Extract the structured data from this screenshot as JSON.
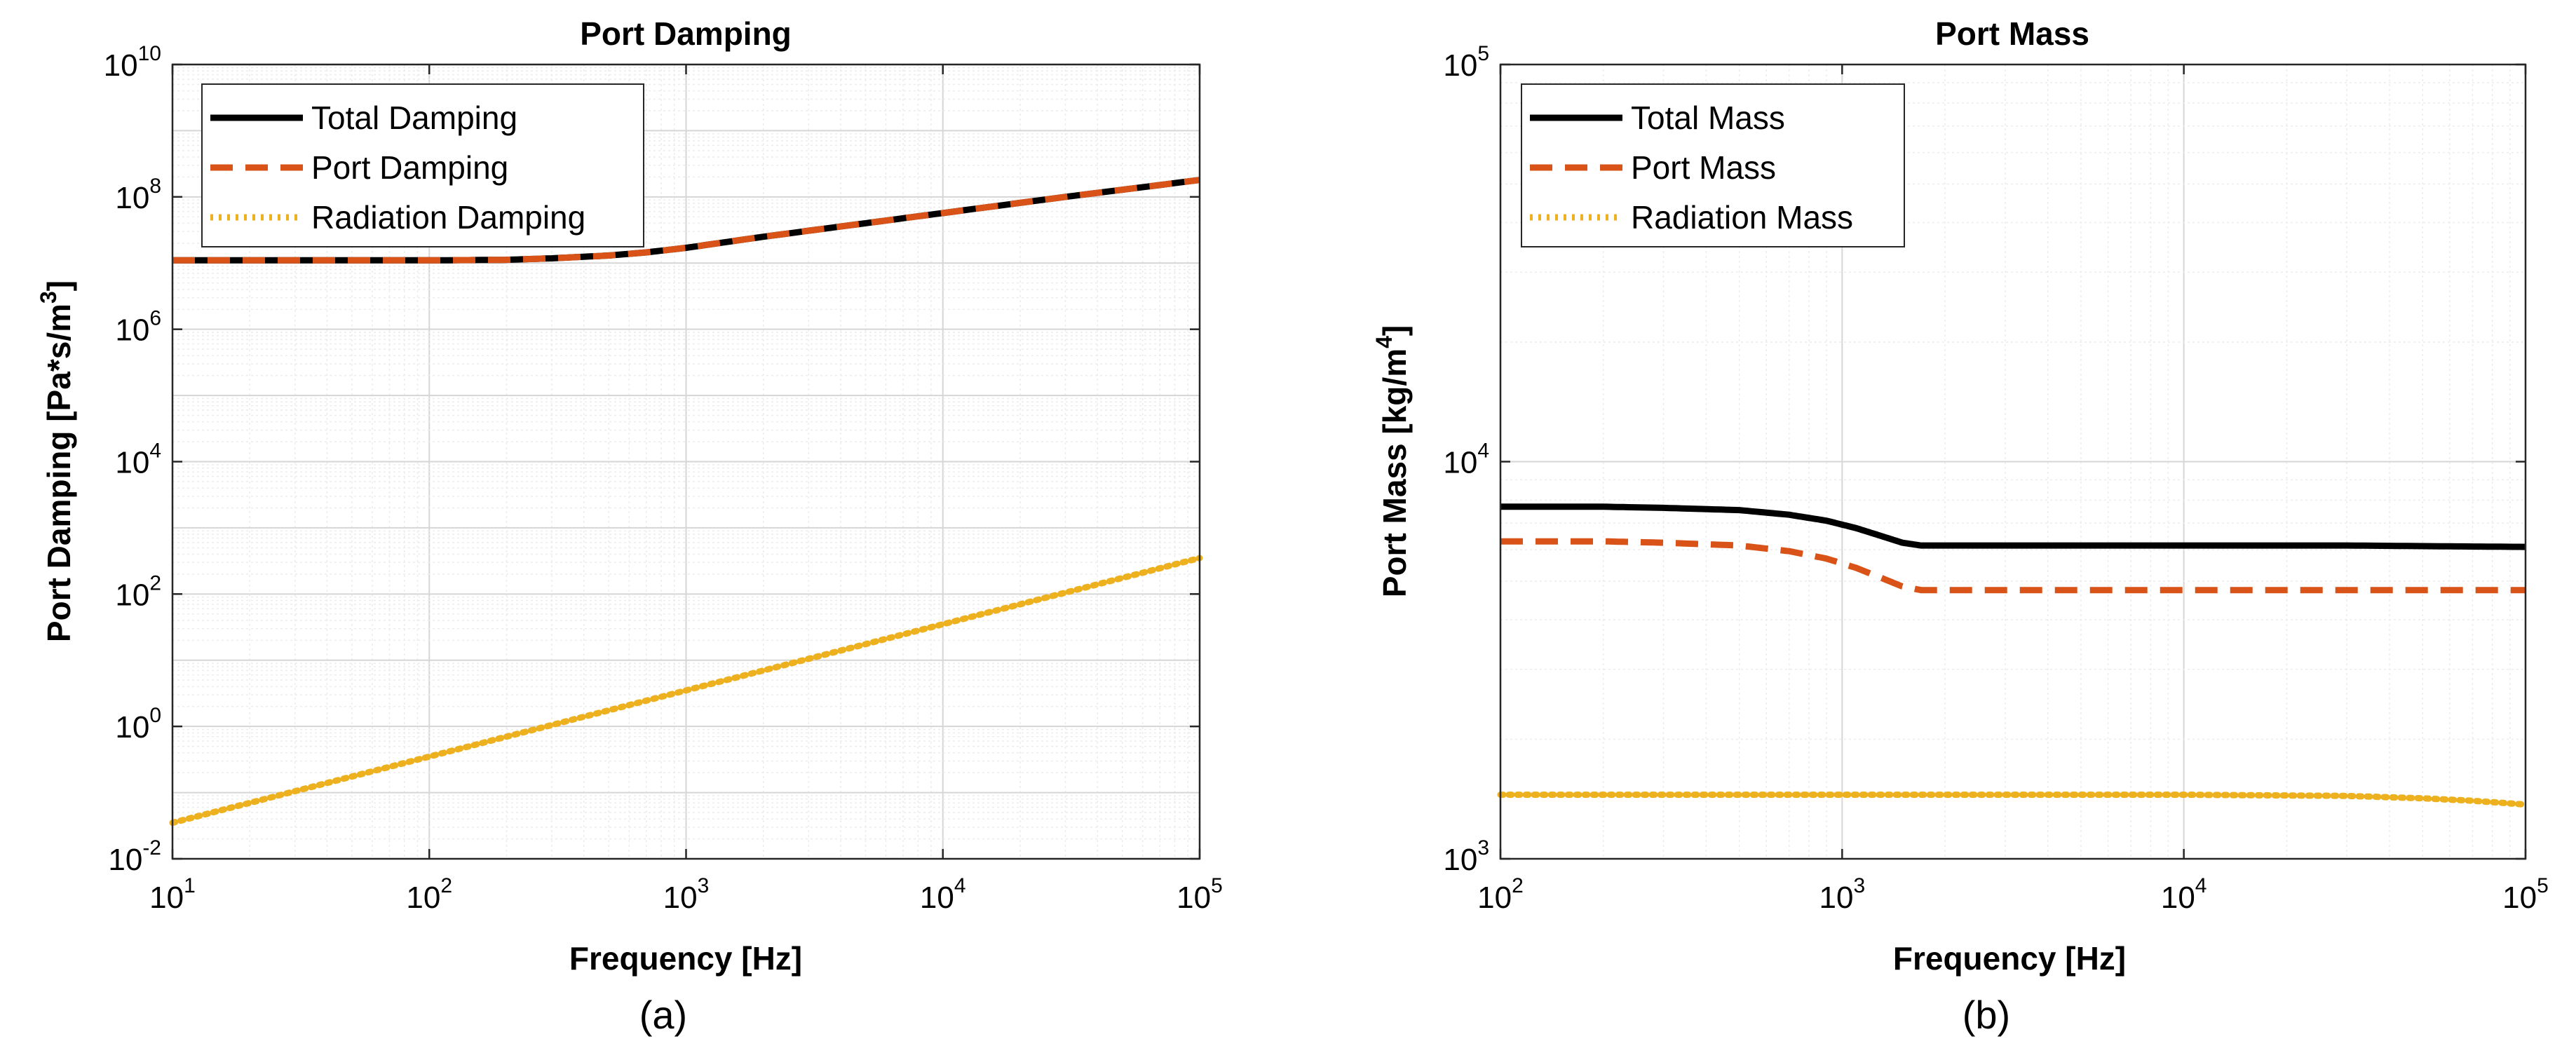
{
  "chart_data": [
    {
      "id": "a",
      "type": "line",
      "title": "Port Damping",
      "xlabel": "Frequency [Hz]",
      "ylabel": "Port Damping [Pa*s/m",
      "ylabel_sup": "3",
      "ylabel_tail": "]",
      "caption": "(a)",
      "xscale": "log",
      "yscale": "log",
      "xlim": [
        10,
        100000
      ],
      "ylim": [
        0.01,
        10000000000
      ],
      "xticks": [
        {
          "value": 10,
          "base": "10",
          "exp": "1"
        },
        {
          "value": 100,
          "base": "10",
          "exp": "2"
        },
        {
          "value": 1000,
          "base": "10",
          "exp": "3"
        },
        {
          "value": 10000,
          "base": "10",
          "exp": "4"
        },
        {
          "value": 100000,
          "base": "10",
          "exp": "5"
        }
      ],
      "yticks": [
        {
          "value": 0.01,
          "base": "10",
          "exp": "-2"
        },
        {
          "value": 1,
          "base": "10",
          "exp": "0"
        },
        {
          "value": 100,
          "base": "10",
          "exp": "2"
        },
        {
          "value": 10000,
          "base": "10",
          "exp": "4"
        },
        {
          "value": 1000000,
          "base": "10",
          "exp": "6"
        },
        {
          "value": 100000000,
          "base": "10",
          "exp": "8"
        },
        {
          "value": 10000000000,
          "base": "10",
          "exp": "10"
        }
      ],
      "grid": true,
      "legend_position": "top-left",
      "series": [
        {
          "name": "Total Damping",
          "color": "#000000",
          "style": "solid",
          "x": [
            10,
            30,
            100,
            200,
            300,
            500,
            700,
            1000,
            2000,
            5000,
            10000,
            30000,
            100000
          ],
          "y": [
            11000000,
            11000000,
            11000000,
            11200000,
            11800000,
            13000000,
            14500000,
            17000000,
            25000000,
            40000000,
            57000000,
            100000000,
            180000000
          ]
        },
        {
          "name": "Port Damping",
          "color": "#D95319",
          "style": "dashed",
          "x": [
            10,
            30,
            100,
            200,
            300,
            500,
            700,
            1000,
            2000,
            5000,
            10000,
            30000,
            100000
          ],
          "y": [
            11000000,
            11000000,
            11000000,
            11200000,
            11800000,
            13000000,
            14500000,
            17000000,
            25000000,
            40000000,
            57000000,
            100000000,
            180000000
          ]
        },
        {
          "name": "Radiation Damping",
          "color": "#EDB120",
          "style": "dotted",
          "x": [
            10,
            100,
            1000,
            10000,
            100000
          ],
          "y": [
            0.035,
            0.35,
            3.5,
            35,
            350
          ]
        }
      ]
    },
    {
      "id": "b",
      "type": "line",
      "title": "Port Mass",
      "xlabel": "Frequency [Hz]",
      "ylabel": "Port Mass [kg/m",
      "ylabel_sup": "4",
      "ylabel_tail": "]",
      "caption": "(b)",
      "xscale": "log",
      "yscale": "log",
      "xlim": [
        100,
        100000
      ],
      "ylim": [
        1000,
        100000
      ],
      "xticks": [
        {
          "value": 100,
          "base": "10",
          "exp": "2"
        },
        {
          "value": 1000,
          "base": "10",
          "exp": "3"
        },
        {
          "value": 10000,
          "base": "10",
          "exp": "4"
        },
        {
          "value": 100000,
          "base": "10",
          "exp": "5"
        }
      ],
      "yticks": [
        {
          "value": 1000,
          "base": "10",
          "exp": "3"
        },
        {
          "value": 10000,
          "base": "10",
          "exp": "4"
        },
        {
          "value": 100000,
          "base": "10",
          "exp": "5"
        }
      ],
      "grid": true,
      "legend_position": "top-left",
      "series": [
        {
          "name": "Total Mass",
          "color": "#000000",
          "style": "solid",
          "x": [
            100,
            200,
            300,
            500,
            700,
            900,
            1100,
            1300,
            1500,
            1700,
            1900,
            3000,
            10000,
            30000,
            60000,
            100000
          ],
          "y": [
            7700,
            7700,
            7650,
            7550,
            7350,
            7100,
            6800,
            6500,
            6250,
            6150,
            6150,
            6150,
            6150,
            6150,
            6120,
            6100
          ]
        },
        {
          "name": "Port Mass",
          "color": "#D95319",
          "style": "dashed",
          "x": [
            100,
            200,
            300,
            500,
            700,
            900,
            1100,
            1300,
            1500,
            1700,
            1900,
            3000,
            10000,
            30000,
            100000
          ],
          "y": [
            6300,
            6300,
            6250,
            6150,
            5950,
            5700,
            5400,
            5100,
            4850,
            4750,
            4750,
            4750,
            4750,
            4750,
            4750
          ]
        },
        {
          "name": "Radiation Mass",
          "color": "#EDB120",
          "style": "dotted",
          "x": [
            100,
            1000,
            10000,
            30000,
            50000,
            70000,
            100000
          ],
          "y": [
            1450,
            1450,
            1450,
            1440,
            1420,
            1400,
            1370
          ]
        }
      ]
    }
  ]
}
